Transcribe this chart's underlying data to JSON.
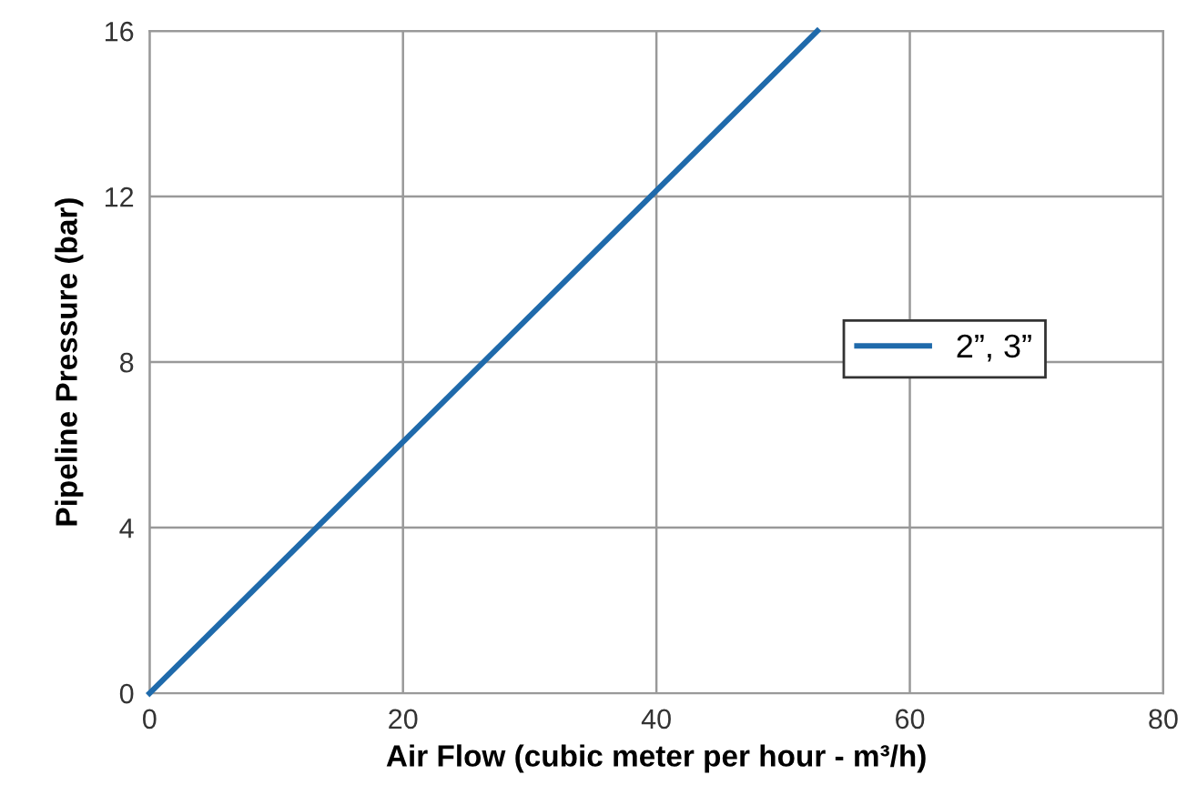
{
  "chart_data": {
    "type": "line",
    "xlabel": "Air Flow (cubic meter per hour - m³/h)",
    "ylabel": "Pipeline Pressure (bar)",
    "series": [
      {
        "name": "2”, 3”",
        "color": "#1f6aab",
        "x": [
          0,
          52.7
        ],
        "values": [
          0,
          16
        ]
      }
    ],
    "xlim": [
      0,
      80
    ],
    "xticks": [
      0,
      20,
      40,
      60,
      80
    ],
    "ylim": [
      0,
      16
    ],
    "yticks": [
      0,
      4,
      8,
      12,
      16
    ],
    "grid": true,
    "legend": "right",
    "marker": "none",
    "line_style": "solid"
  }
}
